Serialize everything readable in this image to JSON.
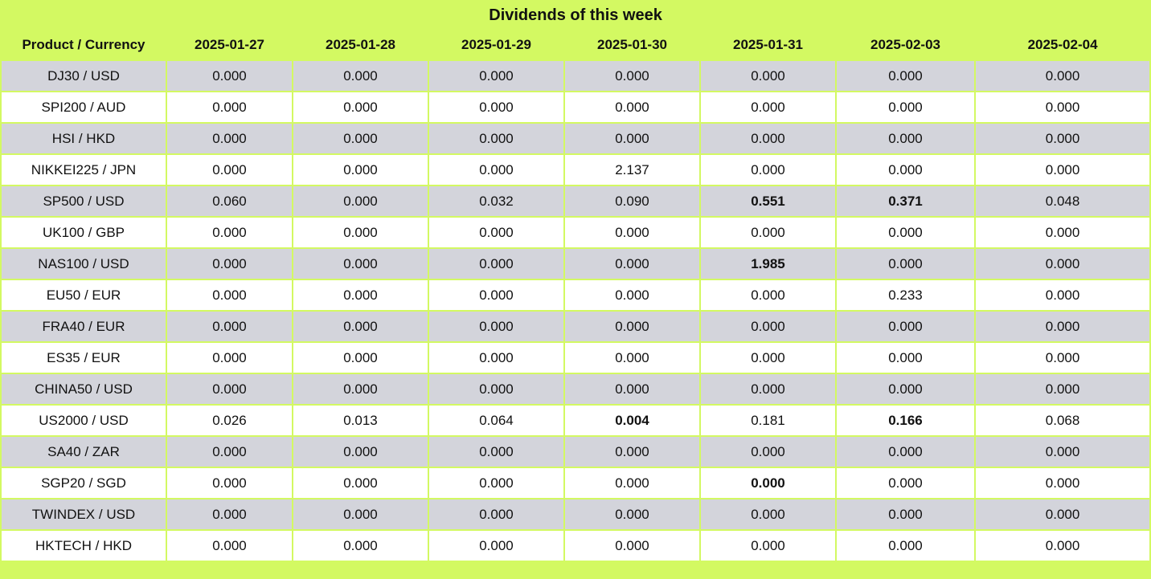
{
  "colors": {
    "background": "#d3f962",
    "row": "#ffffff",
    "row_alt": "#d3d4db",
    "text": "#111111"
  },
  "chart_data": {
    "type": "table",
    "title": "Dividends of this week",
    "columns": [
      "Product / Currency",
      "2025-01-27",
      "2025-01-28",
      "2025-01-29",
      "2025-01-30",
      "2025-01-31",
      "2025-02-03",
      "2025-02-04"
    ],
    "rows": [
      {
        "label": "DJ30 / USD",
        "values": [
          "0.000",
          "0.000",
          "0.000",
          "0.000",
          "0.000",
          "0.000",
          "0.000"
        ],
        "bold": []
      },
      {
        "label": "SPI200 / AUD",
        "values": [
          "0.000",
          "0.000",
          "0.000",
          "0.000",
          "0.000",
          "0.000",
          "0.000"
        ],
        "bold": []
      },
      {
        "label": "HSI / HKD",
        "values": [
          "0.000",
          "0.000",
          "0.000",
          "0.000",
          "0.000",
          "0.000",
          "0.000"
        ],
        "bold": []
      },
      {
        "label": "NIKKEI225 / JPN",
        "values": [
          "0.000",
          "0.000",
          "0.000",
          "2.137",
          "0.000",
          "0.000",
          "0.000"
        ],
        "bold": []
      },
      {
        "label": "SP500 / USD",
        "values": [
          "0.060",
          "0.000",
          "0.032",
          "0.090",
          "0.551",
          "0.371",
          "0.048"
        ],
        "bold": [
          4,
          5
        ]
      },
      {
        "label": "UK100 / GBP",
        "values": [
          "0.000",
          "0.000",
          "0.000",
          "0.000",
          "0.000",
          "0.000",
          "0.000"
        ],
        "bold": []
      },
      {
        "label": "NAS100 / USD",
        "values": [
          "0.000",
          "0.000",
          "0.000",
          "0.000",
          "1.985",
          "0.000",
          "0.000"
        ],
        "bold": [
          4
        ]
      },
      {
        "label": "EU50 / EUR",
        "values": [
          "0.000",
          "0.000",
          "0.000",
          "0.000",
          "0.000",
          "0.233",
          "0.000"
        ],
        "bold": []
      },
      {
        "label": "FRA40 / EUR",
        "values": [
          "0.000",
          "0.000",
          "0.000",
          "0.000",
          "0.000",
          "0.000",
          "0.000"
        ],
        "bold": []
      },
      {
        "label": "ES35 / EUR",
        "values": [
          "0.000",
          "0.000",
          "0.000",
          "0.000",
          "0.000",
          "0.000",
          "0.000"
        ],
        "bold": []
      },
      {
        "label": "CHINA50 / USD",
        "values": [
          "0.000",
          "0.000",
          "0.000",
          "0.000",
          "0.000",
          "0.000",
          "0.000"
        ],
        "bold": []
      },
      {
        "label": "US2000 / USD",
        "values": [
          "0.026",
          "0.013",
          "0.064",
          "0.004",
          "0.181",
          "0.166",
          "0.068"
        ],
        "bold": [
          3,
          5
        ]
      },
      {
        "label": "SA40 / ZAR",
        "values": [
          "0.000",
          "0.000",
          "0.000",
          "0.000",
          "0.000",
          "0.000",
          "0.000"
        ],
        "bold": []
      },
      {
        "label": "SGP20 / SGD",
        "values": [
          "0.000",
          "0.000",
          "0.000",
          "0.000",
          "0.000",
          "0.000",
          "0.000"
        ],
        "bold": [
          4
        ]
      },
      {
        "label": "TWINDEX / USD",
        "values": [
          "0.000",
          "0.000",
          "0.000",
          "0.000",
          "0.000",
          "0.000",
          "0.000"
        ],
        "bold": []
      },
      {
        "label": "HKTECH / HKD",
        "values": [
          "0.000",
          "0.000",
          "0.000",
          "0.000",
          "0.000",
          "0.000",
          "0.000"
        ],
        "bold": []
      }
    ]
  }
}
